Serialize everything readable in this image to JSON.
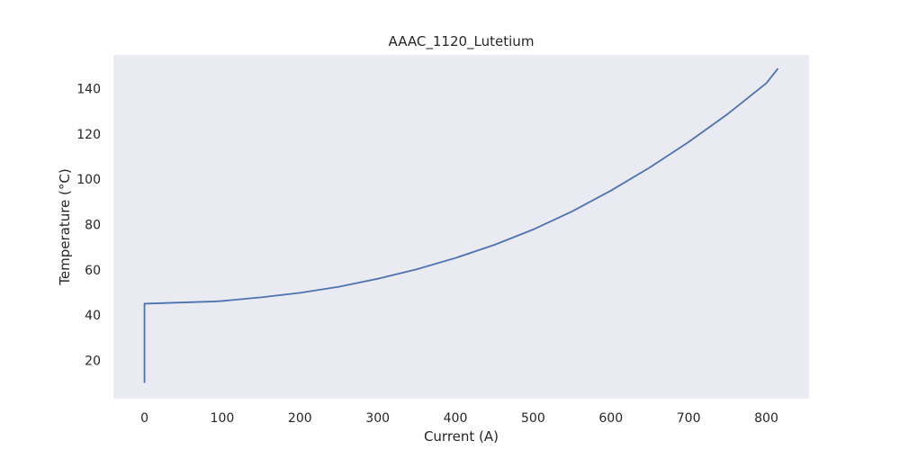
{
  "chart_data": {
    "type": "line",
    "title": "AAAC_1120_Lutetium",
    "xlabel": "Current (A)",
    "ylabel": "Temperature (°C)",
    "xlim": [
      -40,
      855
    ],
    "ylim": [
      3,
      155
    ],
    "xticks": [
      0,
      100,
      200,
      300,
      400,
      500,
      600,
      700,
      800
    ],
    "yticks": [
      20,
      40,
      60,
      80,
      100,
      120,
      140
    ],
    "grid": false,
    "colors": {
      "background": "#eaeaf2",
      "line": "#4c72b0"
    },
    "series": [
      {
        "x": [
          0,
          0,
          90,
          100,
          150,
          200,
          250,
          300,
          350,
          400,
          450,
          500,
          550,
          600,
          650,
          700,
          750,
          800,
          815
        ],
        "y": [
          10,
          45,
          46,
          46.2,
          47.8,
          49.8,
          52.5,
          56,
          60.2,
          65.2,
          71,
          77.8,
          85.8,
          95,
          105.2,
          116.5,
          128.8,
          142.5,
          149
        ]
      }
    ]
  }
}
